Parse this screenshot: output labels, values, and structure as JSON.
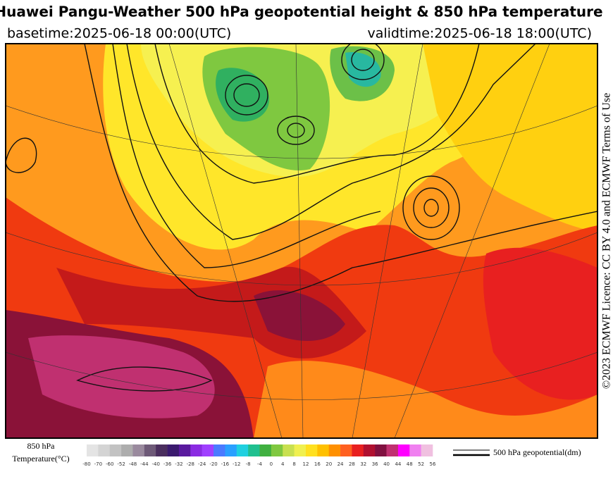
{
  "header": {
    "title": "Huawei Pangu-Weather 500 hPa geopotential height & 850 hPa temperature",
    "basetime": "basetime:2025-06-18 00:00(UTC)",
    "validtime": "validtime:2025-06-18 18:00(UTC)"
  },
  "side_note": "©2023 ECMWF Licence: CC BY 4.0 and ECMWF Terms of Use",
  "legend": {
    "temperature_title_1": "850 hPa",
    "temperature_title_2": "Temperature(°C)",
    "colorbar_ticks": [
      -80,
      -70,
      -60,
      -52,
      -48,
      -44,
      -40,
      -36,
      -32,
      -28,
      -24,
      -20,
      -16,
      -12,
      -8,
      -4,
      0,
      4,
      8,
      12,
      16,
      20,
      24,
      28,
      32,
      36,
      40,
      44,
      48,
      52,
      56
    ],
    "colorbar_colors": [
      "#e4e4e4",
      "#d4d4d4",
      "#c2c2c2",
      "#adadad",
      "#9a8a9e",
      "#6e5a78",
      "#4a2e5e",
      "#3a1a6e",
      "#5a1a9e",
      "#8a2be2",
      "#a040ff",
      "#4a7aff",
      "#2aa0ff",
      "#20d0e0",
      "#20c090",
      "#40b040",
      "#80c840",
      "#c8e050",
      "#f0f050",
      "#ffe020",
      "#ffc000",
      "#ff9000",
      "#ff6020",
      "#e82020",
      "#b01030",
      "#801040",
      "#c03070",
      "#ff00ff",
      "#f080f0",
      "#f0c0e0"
    ],
    "contour_label": "500 hPa geopotential(dm)"
  }
}
